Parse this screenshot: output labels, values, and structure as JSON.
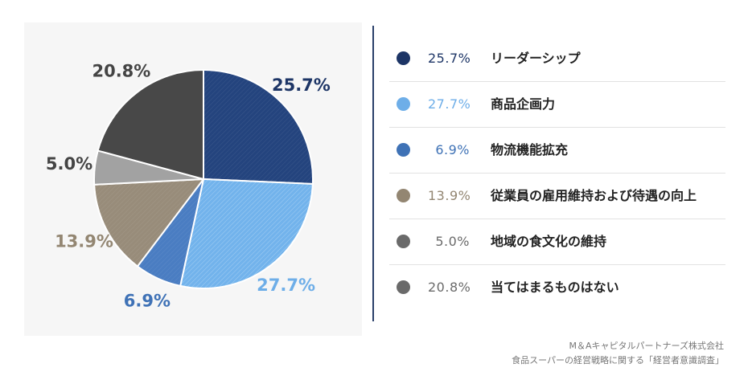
{
  "colors": {
    "leadership": "#24447e",
    "product": "#72b3ec",
    "logistics": "#4a7dc2",
    "staff": "#988c7a",
    "local_food": "#a2a2a2",
    "none": "#484848",
    "legend_gray": "#6a6a6a",
    "divider": "#2a3f6a"
  },
  "chart_data": {
    "type": "pie",
    "slices": [
      {
        "label": "リーダーシップ",
        "value": 25.7,
        "display": "25.7%",
        "color": "#24447e",
        "label_color": "#1d3566"
      },
      {
        "label": "商品企画力",
        "value": 27.7,
        "display": "27.7%",
        "color": "#72b3ec",
        "label_color": "#6eaee8"
      },
      {
        "label": "物流機能拡充",
        "value": 6.9,
        "display": "6.9%",
        "color": "#4a7dc2",
        "label_color": "#3f72b6"
      },
      {
        "label": "従業員の雇用維持および待遇の向上",
        "value": 13.9,
        "display": "13.9%",
        "color": "#988c7a",
        "label_color": "#938672"
      },
      {
        "label": "地域の食文化の維持",
        "value": 5.0,
        "display": "5.0%",
        "color": "#a2a2a2",
        "label_color": "#444444"
      },
      {
        "label": "当てはまるものはない",
        "value": 20.8,
        "display": "20.8%",
        "color": "#484848",
        "label_color": "#444444"
      }
    ],
    "start": "12 o'clock",
    "direction": "clockwise"
  },
  "legend": [
    {
      "pct": "25.7%",
      "name": "リーダーシップ",
      "dot_color": "#1d3566",
      "pct_color": "#1d3566"
    },
    {
      "pct": "27.7%",
      "name": "商品企画力",
      "dot_color": "#6eaee8",
      "pct_color": "#6eaee8"
    },
    {
      "pct": "6.9%",
      "name": "物流機能拡充",
      "dot_color": "#3f72b6",
      "pct_color": "#3f72b6"
    },
    {
      "pct": "13.9%",
      "name": "従業員の雇用維持および待遇の向上",
      "dot_color": "#938672",
      "pct_color": "#938672"
    },
    {
      "pct": "5.0%",
      "name": "地域の食文化の維持",
      "dot_color": "#6a6a6a",
      "pct_color": "#6a6a6a"
    },
    {
      "pct": "20.8%",
      "name": "当てはまるものはない",
      "dot_color": "#6a6a6a",
      "pct_color": "#6a6a6a"
    }
  ],
  "source": {
    "line1": "M＆Aキャピタルパートナーズ株式会社",
    "line2": "食品スーパーの経営戦略に関する「経営者意識調査」"
  }
}
